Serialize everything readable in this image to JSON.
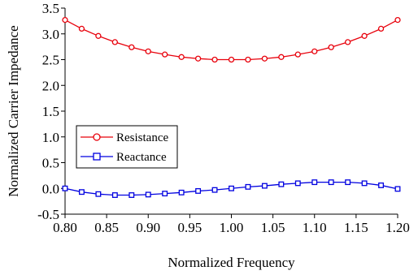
{
  "chart_data": {
    "type": "line",
    "title": "",
    "xlabel": "Normalized Frequency",
    "ylabel": "Normalized Carrier Impedance",
    "xlim": [
      0.8,
      1.2
    ],
    "ylim": [
      -0.5,
      3.5
    ],
    "xticks": [
      0.8,
      0.85,
      0.9,
      0.95,
      1.0,
      1.05,
      1.1,
      1.15,
      1.2
    ],
    "xtick_labels": [
      "0.80",
      "0.85",
      "0.90",
      "0.95",
      "1.00",
      "1.05",
      "1.10",
      "1.15",
      "1.20"
    ],
    "yticks": [
      -0.5,
      0.0,
      0.5,
      1.0,
      1.5,
      2.0,
      2.5,
      3.0,
      3.5
    ],
    "ytick_labels": [
      "-0.5",
      "0.0",
      "0.5",
      "1.0",
      "1.5",
      "2.0",
      "2.5",
      "3.0",
      "3.5"
    ],
    "grid": false,
    "legend_position": "middle-left",
    "x": [
      0.8,
      0.82,
      0.84,
      0.86,
      0.88,
      0.9,
      0.92,
      0.94,
      0.96,
      0.98,
      1.0,
      1.02,
      1.04,
      1.06,
      1.08,
      1.1,
      1.12,
      1.14,
      1.16,
      1.18,
      1.2
    ],
    "series": [
      {
        "name": "Resistance",
        "color": "#e8000b",
        "marker": "circle",
        "values": [
          3.27,
          3.1,
          2.96,
          2.84,
          2.74,
          2.66,
          2.6,
          2.55,
          2.52,
          2.5,
          2.5,
          2.5,
          2.52,
          2.55,
          2.6,
          2.66,
          2.74,
          2.84,
          2.96,
          3.1,
          3.27
        ]
      },
      {
        "name": "Reactance",
        "color": "#0000e0",
        "marker": "square",
        "values": [
          0.0,
          -0.07,
          -0.11,
          -0.13,
          -0.13,
          -0.12,
          -0.1,
          -0.08,
          -0.05,
          -0.03,
          0.0,
          0.03,
          0.05,
          0.08,
          0.1,
          0.12,
          0.12,
          0.12,
          0.1,
          0.06,
          -0.01
        ]
      }
    ]
  }
}
